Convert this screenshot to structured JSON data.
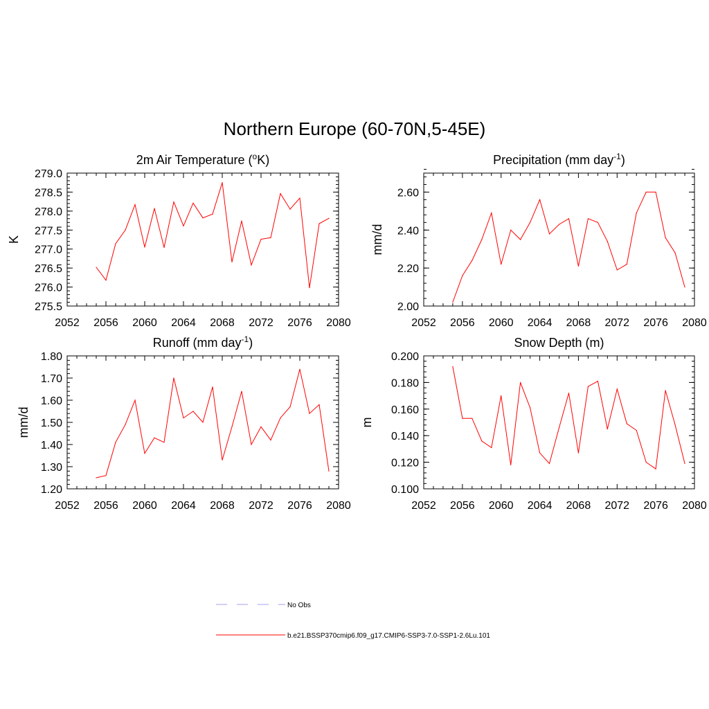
{
  "title": "Northern Europe (60-70N,5-45E)",
  "legend": [
    {
      "label": "No Obs",
      "color": "#a0a0f0",
      "dashed": true
    },
    {
      "label": "b.e21.BSSP370cmip6.f09_g17.CMIP6-SSP3-7.0-SSP1-2.6Lu.101",
      "color": "#ff0000",
      "dashed": false
    }
  ],
  "chart_data": [
    {
      "type": "line",
      "title": "2m Air Temperature (°K)",
      "title_main": "2m Air Temperature (",
      "title_sup": "o",
      "title_rest": "K)",
      "ylabel": "K",
      "xlim": [
        2052,
        2080
      ],
      "ylim": [
        275.5,
        279.0
      ],
      "xticks": [
        2052,
        2056,
        2060,
        2064,
        2068,
        2072,
        2076,
        2080
      ],
      "yticks": [
        "275.5",
        "276.0",
        "276.5",
        "277.0",
        "277.5",
        "278.0",
        "278.5",
        "279.0"
      ],
      "ytick_values": [
        275.5,
        276.0,
        276.5,
        277.0,
        277.5,
        278.0,
        278.5,
        279.0
      ],
      "ytick_minor_step": 0.1,
      "x": [
        2055,
        2056,
        2057,
        2058,
        2059,
        2060,
        2061,
        2062,
        2063,
        2064,
        2065,
        2066,
        2067,
        2068,
        2069,
        2070,
        2071,
        2072,
        2073,
        2074,
        2075,
        2076,
        2077,
        2078,
        2079
      ],
      "y": [
        276.52,
        276.18,
        277.14,
        277.5,
        278.17,
        277.05,
        278.07,
        277.04,
        278.24,
        277.61,
        278.21,
        277.82,
        277.92,
        278.75,
        276.66,
        277.74,
        276.58,
        277.26,
        277.3,
        278.46,
        278.05,
        278.34,
        275.98,
        277.67,
        277.81
      ],
      "color": "#ff0000"
    },
    {
      "type": "line",
      "title": "Precipitation (mm day-1)",
      "title_main": "Precipitation (mm day",
      "title_sup": "-1",
      "title_rest": ")",
      "ylabel": "mm/d",
      "xlim": [
        2052,
        2080
      ],
      "ylim": [
        2.0,
        2.7
      ],
      "xticks": [
        2052,
        2056,
        2060,
        2064,
        2068,
        2072,
        2076,
        2080
      ],
      "yticks": [
        "2.00",
        "2.20",
        "2.40",
        "2.60"
      ],
      "ytick_values": [
        2.0,
        2.2,
        2.4,
        2.6
      ],
      "ytick_minor_step": 0.04,
      "x": [
        2055,
        2056,
        2057,
        2058,
        2059,
        2060,
        2061,
        2062,
        2063,
        2064,
        2065,
        2066,
        2067,
        2068,
        2069,
        2070,
        2071,
        2072,
        2073,
        2074,
        2075,
        2076,
        2077,
        2078,
        2079
      ],
      "y": [
        2.02,
        2.16,
        2.24,
        2.35,
        2.49,
        2.22,
        2.4,
        2.35,
        2.44,
        2.56,
        2.38,
        2.43,
        2.46,
        2.21,
        2.46,
        2.44,
        2.34,
        2.19,
        2.22,
        2.49,
        2.6,
        2.6,
        2.36,
        2.28,
        2.1
      ],
      "color": "#ff0000"
    },
    {
      "type": "line",
      "title": "Runoff (mm day-1)",
      "title_main": "Runoff (mm day",
      "title_sup": "-1",
      "title_rest": ")",
      "ylabel": "mm/d",
      "xlim": [
        2052,
        2080
      ],
      "ylim": [
        1.2,
        1.8
      ],
      "xticks": [
        2052,
        2056,
        2060,
        2064,
        2068,
        2072,
        2076,
        2080
      ],
      "yticks": [
        "1.20",
        "1.30",
        "1.40",
        "1.50",
        "1.60",
        "1.70",
        "1.80"
      ],
      "ytick_values": [
        1.2,
        1.3,
        1.4,
        1.5,
        1.6,
        1.7,
        1.8
      ],
      "ytick_minor_step": 0.02,
      "x": [
        2055,
        2056,
        2057,
        2058,
        2059,
        2060,
        2061,
        2062,
        2063,
        2064,
        2065,
        2066,
        2067,
        2068,
        2069,
        2070,
        2071,
        2072,
        2073,
        2074,
        2075,
        2076,
        2077,
        2078,
        2079
      ],
      "y": [
        1.25,
        1.26,
        1.41,
        1.49,
        1.6,
        1.36,
        1.43,
        1.41,
        1.7,
        1.52,
        1.55,
        1.5,
        1.66,
        1.33,
        1.48,
        1.64,
        1.4,
        1.48,
        1.42,
        1.52,
        1.57,
        1.74,
        1.54,
        1.58,
        1.28
      ],
      "color": "#ff0000"
    },
    {
      "type": "line",
      "title": "Snow Depth (m)",
      "title_main": "Snow Depth (m)",
      "title_sup": "",
      "title_rest": "",
      "ylabel": "m",
      "xlim": [
        2052,
        2080
      ],
      "ylim": [
        0.1,
        0.2
      ],
      "xticks": [
        2052,
        2056,
        2060,
        2064,
        2068,
        2072,
        2076,
        2080
      ],
      "yticks": [
        "0.100",
        "0.120",
        "0.140",
        "0.160",
        "0.180",
        "0.200"
      ],
      "ytick_values": [
        0.1,
        0.12,
        0.14,
        0.16,
        0.18,
        0.2
      ],
      "ytick_minor_step": 0.004,
      "x": [
        2055,
        2056,
        2057,
        2058,
        2059,
        2060,
        2061,
        2062,
        2063,
        2064,
        2065,
        2066,
        2067,
        2068,
        2069,
        2070,
        2071,
        2072,
        2073,
        2074,
        2075,
        2076,
        2077,
        2078,
        2079
      ],
      "y": [
        0.192,
        0.153,
        0.153,
        0.136,
        0.131,
        0.17,
        0.118,
        0.18,
        0.161,
        0.127,
        0.119,
        0.146,
        0.172,
        0.127,
        0.177,
        0.181,
        0.145,
        0.175,
        0.149,
        0.144,
        0.12,
        0.115,
        0.174,
        0.148,
        0.119
      ],
      "color": "#ff0000"
    }
  ]
}
